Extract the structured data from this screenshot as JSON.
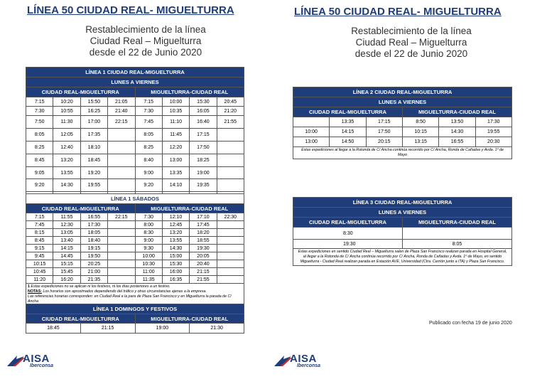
{
  "left": {
    "title": "LÍNEA 50 CIUDAD REAL- MIGUELTURRA",
    "sub1": "Restablecimiento de la línea",
    "sub2": "Ciudad Real – Miguelturra",
    "sub3": "desde el 22 de Junio 2020",
    "t1": {
      "title": "LÍNEA 1 CIUDAD REAL-MIGUELTURRA",
      "days": "LUNES A VIERNES",
      "dir1": "CIUDAD REAL-MIGUELTURRA",
      "dir2": "MIGUELTURRA-CIUDAD REAL",
      "rows": [
        [
          "7:15",
          "10:20",
          "15:50",
          "21:05",
          "7:15",
          "10:00",
          "15:30",
          "20:45"
        ],
        [
          "7:30",
          "10:55",
          "16:25",
          "21:40",
          "7:30",
          "10:35",
          "16:05",
          "21:20"
        ],
        [
          "7:50",
          "11:30",
          "17:00",
          "22:15",
          "7:45",
          "11:10",
          "16:40",
          "21:55"
        ],
        [
          "8:05",
          "12:05",
          "17:35",
          "",
          "8:05",
          "11:45",
          "17:15",
          ""
        ],
        [
          "8:25",
          "12:40",
          "18:10",
          "",
          "8:25",
          "12:20",
          "17:50",
          ""
        ],
        [
          "8:45",
          "13:20",
          "18:45",
          "",
          "8:40",
          "13:00",
          "18:25",
          ""
        ],
        [
          "9:05",
          "13:55",
          "19:20",
          "",
          "9:00",
          "13:35",
          "19:00",
          ""
        ],
        [
          "9:20",
          "14:30",
          "19:55",
          "",
          "9:20",
          "14:10",
          "19:35",
          ""
        ],
        [
          "9:40",
          "15:15",
          "20:30",
          "",
          "9:40",
          "14:50",
          "20:10",
          ""
        ]
      ]
    },
    "t2": {
      "title": "LÍNEA 1 SÁBADOS",
      "dir1": "CIUDAD REAL-MIGUELTURRA",
      "dir2": "MIGUELTURRA-CIUDAD REAL",
      "rows": [
        [
          "7:15",
          "11:55",
          "16:55",
          "22:15",
          "7:30",
          "12:10",
          "17:10",
          "22:30"
        ],
        [
          "7:45",
          "12:30",
          "17:30",
          "",
          "8:00",
          "12:45",
          "17:45",
          ""
        ],
        [
          "8:15",
          "13:05",
          "18:05",
          "",
          "8:30",
          "13:20",
          "18:20",
          ""
        ],
        [
          "8:45",
          "13:40",
          "18:40",
          "",
          "9:00",
          "13:55",
          "18:55",
          ""
        ],
        [
          "9:15",
          "14:15",
          "19:15",
          "",
          "9:30",
          "14:30",
          "19:30",
          ""
        ],
        [
          "9:45",
          "14:45",
          "19:50",
          "",
          "10:00",
          "15:00",
          "20:05",
          ""
        ],
        [
          "10:15",
          "15:15",
          "20:25",
          "",
          "10:30",
          "15:30",
          "20:40",
          ""
        ],
        [
          "10:45",
          "15:45",
          "21:00",
          "",
          "11:00",
          "16:00",
          "21:15",
          ""
        ],
        [
          "11:20",
          "16:20",
          "21:35",
          "",
          "11:35",
          "16:35",
          "21:55",
          ""
        ]
      ],
      "note1_bold": "1",
      "note1": " Estas expediciones no se aplican ni los festivos, ni los días posteriores a un festivo.",
      "note2_bold": "NOTAS:",
      "note2": " Los horarios son aproximados dependiendo del tráfico y otras circunstancias ajenas a la empresa.",
      "note3": "Las referencias horarias corresponden: en Ciudad Real a la para de Plaza San Francisco y en Miguelturra la parada de C/ Ancha"
    },
    "t3": {
      "title": "LÍNEA 1 DOMINGOS Y FESTIVOS",
      "dir1": "CIUDAD REAL-MIGUELTURRA",
      "dir2": "MIGUELTURRA-CIUDAD REAL",
      "row": [
        "18:45",
        "21:15",
        "19:00",
        "21:30"
      ]
    }
  },
  "right": {
    "title": "LÍNEA 50 CIUDAD REAL- MIGUELTURRA",
    "sub1": "Restablecimiento de la línea",
    "sub2": "Ciudad Real – Miguelturra",
    "sub3": "desde el 22 de Junio 2020",
    "t4": {
      "title": "LÍNEA 2 CIUDAD REAL-MIGUELTURRA",
      "days": "LUNES A VIERNES",
      "dir1": "CIUDAD REAL-MIGUELTURRA",
      "dir2": "MIGUELTURRA-CIUDAD REAL",
      "rows": [
        [
          "",
          "13:35",
          "17:15",
          "8:50",
          "13:50",
          "17:30"
        ],
        [
          "10:00",
          "14:15",
          "17:50",
          "10:15",
          "14:30",
          "19:55"
        ],
        [
          "13:00",
          "14:50",
          "20:15",
          "13:15",
          "16:55",
          "20:30"
        ]
      ],
      "note": "Estas expediciones al llegar a la Rotonda de C/ Ancha continúa recorrido por C/ Ancha, Ronda de Cañadas y Avda. 1º de Mayo"
    },
    "t5": {
      "title": "LÍNEA 3 CIUDAD REAL-MIGUELTURRA",
      "days": "LUNES A VIERNES",
      "dir1": "CIUDAD REAL-MIGUELTURRA",
      "dir2": "MIGUELTURRA-CIUDAD REAL",
      "rows": [
        [
          "8:30",
          ""
        ],
        [
          "19:30",
          "8:05"
        ]
      ],
      "note": "Estas expediciones en sentido Ciudad Real – Miguelturra salen de Plaza San Francisco realizan parada en Hospital General, al llegar a la Rotonda de C/ Ancha continúa recorrido por C/ Ancha, Ronda de Cañadas y Avda. 1º de Mayo, en sentido Miguelturra - Ciudad Real realizan parada en Estación AVE, Universidad (Ctra. Carrión junto a ITA) y Plaza San Francisco."
    },
    "published": "Publicado con fecha 19 de junio 2020"
  },
  "logo": {
    "name": "AISA",
    "sub": "Iberconsa"
  }
}
